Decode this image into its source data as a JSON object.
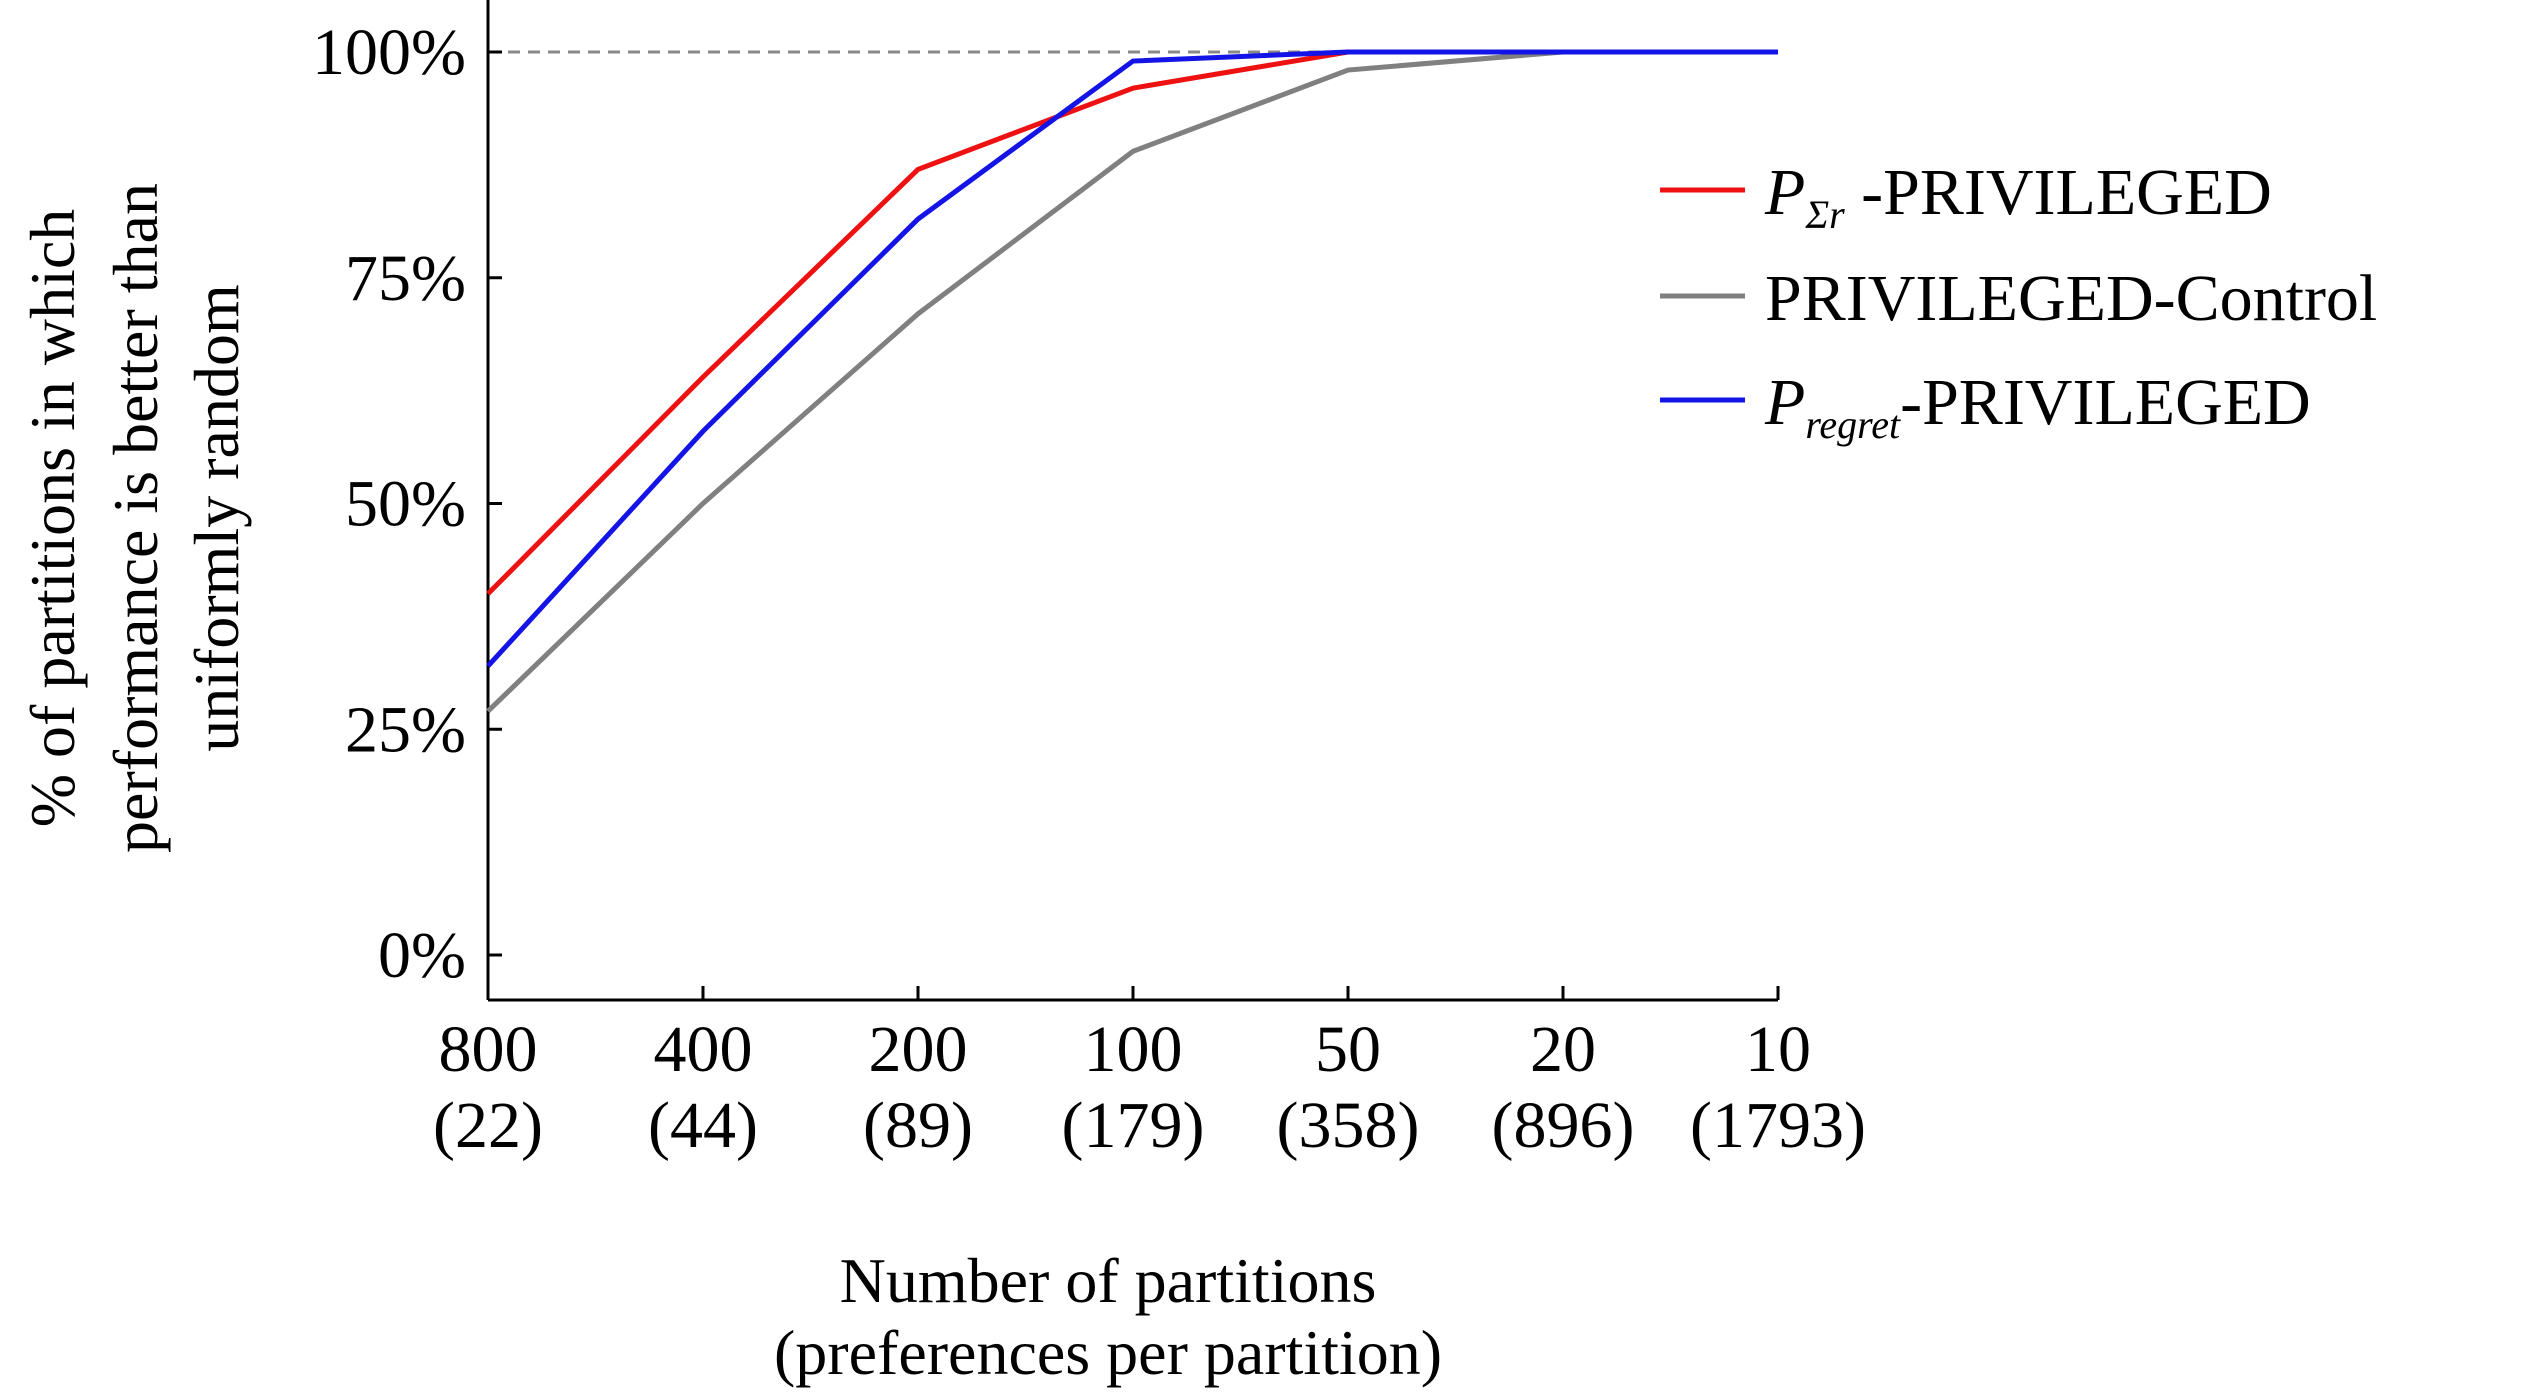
{
  "chart_data": {
    "type": "line",
    "title": "",
    "xlabel": [
      "Number of partitions",
      "(preferences per partition)"
    ],
    "ylabel": [
      "% of partitions in which",
      "performance is better than",
      "uniformly random"
    ],
    "categories": [
      "800",
      "400",
      "200",
      "100",
      "50",
      "20",
      "10"
    ],
    "category_sublabels": [
      "(22)",
      "(44)",
      "(89)",
      "(179)",
      "(358)",
      "(896)",
      "(1793)"
    ],
    "yticks": [
      {
        "value": 0,
        "label": "0%"
      },
      {
        "value": 25,
        "label": "25%"
      },
      {
        "value": 50,
        "label": "50%"
      },
      {
        "value": 75,
        "label": "75%"
      },
      {
        "value": 100,
        "label": "100%"
      }
    ],
    "ylim": [
      -5,
      105
    ],
    "reference_line": {
      "value": 100,
      "style": "dashed",
      "color": "#888888"
    },
    "legend_position": "right",
    "series": [
      {
        "name": "P_Σr-PRIVILEGED",
        "legend": {
          "base": "P",
          "subscript": "Σr",
          "suffix": " -PRIVILEGED"
        },
        "color": "#ee1111",
        "values": [
          40,
          64,
          87,
          96,
          100,
          100,
          100
        ]
      },
      {
        "name": "PRIVILEGED-Control",
        "legend": {
          "base": "",
          "subscript": "",
          "suffix": "PRIVILEGED-Control"
        },
        "color": "#808080",
        "values": [
          27,
          50,
          71,
          89,
          98,
          100,
          100
        ]
      },
      {
        "name": "P_regret-PRIVILEGED",
        "legend": {
          "base": "P",
          "subscript": "regret",
          "suffix": "-PRIVILEGED"
        },
        "color": "#1414e6",
        "values": [
          32,
          58,
          81.5,
          99,
          100,
          100,
          100
        ]
      }
    ]
  }
}
